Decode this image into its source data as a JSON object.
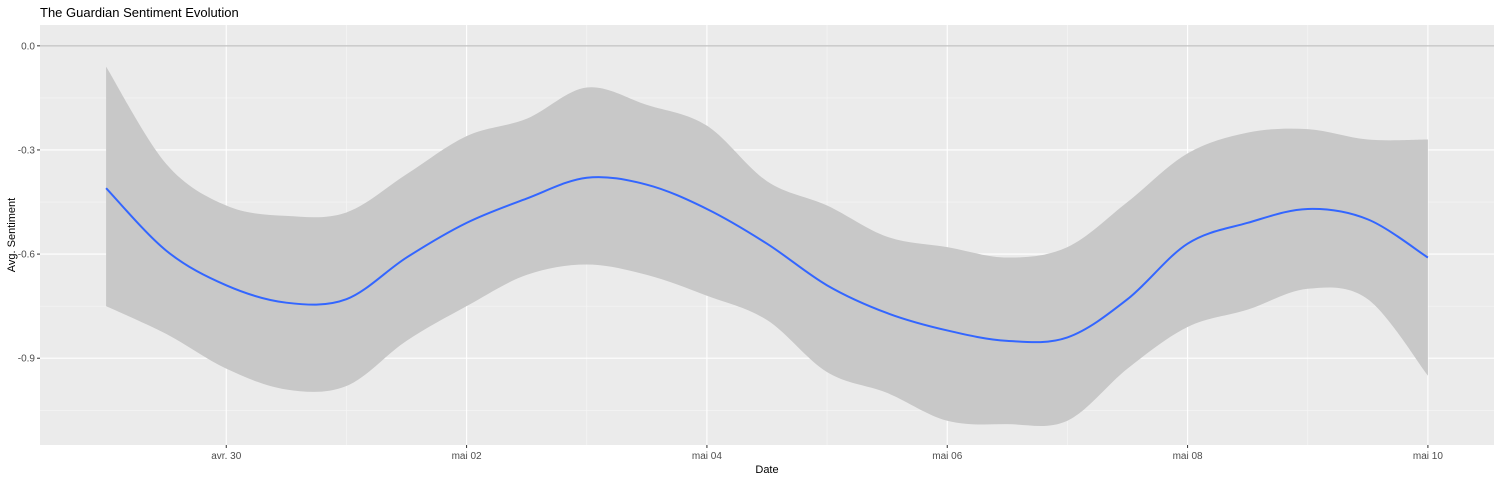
{
  "chart_data": {
    "type": "line",
    "title": "The Guardian Sentiment Evolution",
    "xlabel": "Date",
    "ylabel": "Avg. Sentiment",
    "x_ticks": [
      "avr. 30",
      "mai 02",
      "mai 04",
      "mai 06",
      "mai 08",
      "mai 10"
    ],
    "y_ticks": [
      "0.0",
      "-0.3",
      "-0.6",
      "-0.9"
    ],
    "y_tick_values": [
      0.0,
      -0.3,
      -0.6,
      -0.9
    ],
    "ylim": [
      -1.15,
      0.06
    ],
    "grid": true,
    "background": "#ebebeb",
    "colors": {
      "line": "#3366ff",
      "ribbon": "#c8c8c8",
      "reference_line": "#b3b3b3"
    },
    "reference_line_y": 0.0,
    "series": [
      {
        "x": [
          "2025-04-29",
          "2025-04-29T12:00",
          "2025-04-30",
          "2025-04-30T12:00",
          "2025-05-01",
          "2025-05-01T12:00",
          "2025-05-02",
          "2025-05-02T12:00",
          "2025-05-03",
          "2025-05-03T12:00",
          "2025-05-04",
          "2025-05-04T12:00",
          "2025-05-05",
          "2025-05-05T12:00",
          "2025-05-06",
          "2025-05-06T12:00",
          "2025-05-07",
          "2025-05-07T12:00",
          "2025-05-08",
          "2025-05-08T12:00",
          "2025-05-09",
          "2025-05-09T12:00",
          "2025-05-10"
        ],
        "y": [
          -0.41,
          -0.59,
          -0.69,
          -0.74,
          -0.73,
          -0.61,
          -0.51,
          -0.44,
          -0.38,
          -0.4,
          -0.47,
          -0.57,
          -0.69,
          -0.77,
          -0.82,
          -0.85,
          -0.84,
          -0.73,
          -0.57,
          -0.51,
          -0.47,
          -0.5,
          -0.61
        ],
        "upper": [
          -0.06,
          -0.34,
          -0.46,
          -0.49,
          -0.48,
          -0.37,
          -0.26,
          -0.21,
          -0.12,
          -0.17,
          -0.23,
          -0.39,
          -0.46,
          -0.55,
          -0.58,
          -0.61,
          -0.58,
          -0.45,
          -0.31,
          -0.25,
          -0.24,
          -0.27,
          -0.27
        ],
        "lower": [
          -0.75,
          -0.83,
          -0.93,
          -0.99,
          -0.98,
          -0.85,
          -0.75,
          -0.66,
          -0.63,
          -0.66,
          -0.72,
          -0.79,
          -0.94,
          -1.0,
          -1.08,
          -1.09,
          -1.08,
          -0.93,
          -0.81,
          -0.76,
          -0.7,
          -0.73,
          -0.95
        ]
      }
    ]
  }
}
